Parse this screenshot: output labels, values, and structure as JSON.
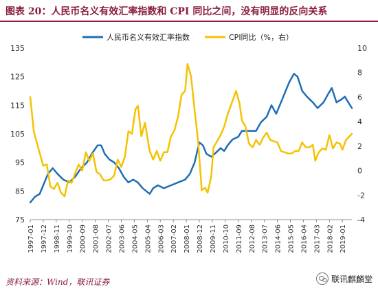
{
  "page": {
    "title": "图表 20：人民币名义有效汇率指数和 CPI 同比之间，没有明显的反向关系"
  },
  "footer": {
    "source": "资料来源：Wind，联讯证券",
    "brand": "联讯麒麟堂",
    "brand_icon": "wechat-icon"
  },
  "colors": {
    "accent": "#8a1f3c",
    "series_neer": "#1f6db5",
    "series_cpi": "#f5c200"
  },
  "chart_data": {
    "type": "line",
    "x_ticks": [
      "1997-01",
      "1997-12",
      "1998-11",
      "1999-10",
      "2000-09",
      "2001-08",
      "2002-07",
      "2003-06",
      "2004-05",
      "2005-04",
      "2006-03",
      "2007-02",
      "2008-01",
      "2008-12",
      "2009-11",
      "2010-10",
      "2011-09",
      "2012-08",
      "2013-07",
      "2014-06",
      "2015-05",
      "2016-04",
      "2017-03",
      "2018-02",
      "2019-01"
    ],
    "y_left": {
      "min": 75,
      "max": 135,
      "ticks": [
        75,
        85,
        95,
        105,
        115,
        125,
        135
      ]
    },
    "y_right": {
      "min": -4,
      "max": 10,
      "ticks": [
        -4,
        -2,
        0,
        2,
        4,
        6,
        8,
        10
      ]
    },
    "legend": {
      "position": "top"
    },
    "grid": false,
    "series": [
      {
        "name": "人民币名义有效汇率指数",
        "axis": "left",
        "points": [
          [
            "1997-01",
            81
          ],
          [
            "1997-05",
            83
          ],
          [
            "1997-09",
            84
          ],
          [
            "1998-01",
            88
          ],
          [
            "1998-04",
            91
          ],
          [
            "1998-08",
            93
          ],
          [
            "1998-12",
            91
          ],
          [
            "1999-05",
            89
          ],
          [
            "1999-10",
            88
          ],
          [
            "2000-03",
            90
          ],
          [
            "2000-08",
            93
          ],
          [
            "2001-01",
            95
          ],
          [
            "2001-05",
            98
          ],
          [
            "2001-10",
            101
          ],
          [
            "2002-01",
            101
          ],
          [
            "2002-04",
            98
          ],
          [
            "2002-08",
            96
          ],
          [
            "2002-12",
            95
          ],
          [
            "2003-04",
            93
          ],
          [
            "2003-08",
            90
          ],
          [
            "2003-12",
            88
          ],
          [
            "2004-04",
            89
          ],
          [
            "2004-08",
            88
          ],
          [
            "2004-12",
            86
          ],
          [
            "2005-03",
            85
          ],
          [
            "2005-06",
            84
          ],
          [
            "2005-09",
            86
          ],
          [
            "2006-01",
            87
          ],
          [
            "2006-06",
            86
          ],
          [
            "2006-12",
            87
          ],
          [
            "2007-06",
            88
          ],
          [
            "2007-12",
            89
          ],
          [
            "2008-04",
            91
          ],
          [
            "2008-08",
            95
          ],
          [
            "2008-12",
            102
          ],
          [
            "2009-03",
            101
          ],
          [
            "2009-06",
            98
          ],
          [
            "2009-10",
            97
          ],
          [
            "2010-01",
            98
          ],
          [
            "2010-06",
            100
          ],
          [
            "2010-09",
            99
          ],
          [
            "2010-12",
            101
          ],
          [
            "2011-04",
            103
          ],
          [
            "2011-09",
            104
          ],
          [
            "2011-12",
            106
          ],
          [
            "2012-04",
            106
          ],
          [
            "2012-08",
            106
          ],
          [
            "2012-12",
            106
          ],
          [
            "2013-04",
            109
          ],
          [
            "2013-09",
            111
          ],
          [
            "2014-01",
            115
          ],
          [
            "2014-05",
            112
          ],
          [
            "2014-09",
            116
          ],
          [
            "2015-01",
            120
          ],
          [
            "2015-04",
            123
          ],
          [
            "2015-08",
            126
          ],
          [
            "2015-11",
            125
          ],
          [
            "2016-03",
            120
          ],
          [
            "2016-07",
            118
          ],
          [
            "2016-12",
            116
          ],
          [
            "2017-04",
            114
          ],
          [
            "2017-09",
            116
          ],
          [
            "2018-01",
            119
          ],
          [
            "2018-04",
            121
          ],
          [
            "2018-08",
            116
          ],
          [
            "2018-12",
            117
          ],
          [
            "2019-03",
            118
          ],
          [
            "2019-06",
            116
          ],
          [
            "2019-09",
            114
          ]
        ]
      },
      {
        "name": "CPI同比（%，右）",
        "axis": "right",
        "points": [
          [
            "1997-01",
            6.0
          ],
          [
            "1997-04",
            3.2
          ],
          [
            "1997-08",
            1.8
          ],
          [
            "1997-12",
            0.4
          ],
          [
            "1998-03",
            0.5
          ],
          [
            "1998-06",
            -1.3
          ],
          [
            "1998-09",
            -1.5
          ],
          [
            "1998-12",
            -1.0
          ],
          [
            "1999-03",
            -1.8
          ],
          [
            "1999-06",
            -2.1
          ],
          [
            "1999-09",
            -0.8
          ],
          [
            "1999-12",
            -1.0
          ],
          [
            "2000-03",
            -0.2
          ],
          [
            "2000-06",
            0.5
          ],
          [
            "2000-09",
            0.0
          ],
          [
            "2000-12",
            1.5
          ],
          [
            "2001-03",
            0.8
          ],
          [
            "2001-06",
            1.4
          ],
          [
            "2001-09",
            -0.1
          ],
          [
            "2001-12",
            -0.3
          ],
          [
            "2002-03",
            -0.8
          ],
          [
            "2002-06",
            -0.8
          ],
          [
            "2002-09",
            -0.7
          ],
          [
            "2002-12",
            -0.4
          ],
          [
            "2003-03",
            0.9
          ],
          [
            "2003-06",
            0.3
          ],
          [
            "2003-09",
            1.1
          ],
          [
            "2003-12",
            3.2
          ],
          [
            "2004-03",
            3.0
          ],
          [
            "2004-06",
            5.0
          ],
          [
            "2004-08",
            5.3
          ],
          [
            "2004-11",
            2.8
          ],
          [
            "2005-02",
            3.9
          ],
          [
            "2005-06",
            1.6
          ],
          [
            "2005-09",
            0.9
          ],
          [
            "2005-12",
            1.6
          ],
          [
            "2006-03",
            0.8
          ],
          [
            "2006-06",
            1.5
          ],
          [
            "2006-09",
            1.5
          ],
          [
            "2006-12",
            2.8
          ],
          [
            "2007-03",
            3.3
          ],
          [
            "2007-06",
            4.4
          ],
          [
            "2007-09",
            6.2
          ],
          [
            "2007-12",
            6.5
          ],
          [
            "2008-02",
            8.7
          ],
          [
            "2008-05",
            7.7
          ],
          [
            "2008-08",
            4.9
          ],
          [
            "2008-11",
            2.4
          ],
          [
            "2009-02",
            -1.6
          ],
          [
            "2009-05",
            -1.4
          ],
          [
            "2009-07",
            -1.8
          ],
          [
            "2009-10",
            -0.5
          ],
          [
            "2009-12",
            1.9
          ],
          [
            "2010-03",
            2.4
          ],
          [
            "2010-06",
            2.9
          ],
          [
            "2010-09",
            3.6
          ],
          [
            "2010-12",
            4.6
          ],
          [
            "2011-03",
            5.4
          ],
          [
            "2011-07",
            6.5
          ],
          [
            "2011-10",
            5.5
          ],
          [
            "2011-12",
            4.1
          ],
          [
            "2012-03",
            3.6
          ],
          [
            "2012-06",
            2.2
          ],
          [
            "2012-09",
            1.9
          ],
          [
            "2012-12",
            2.5
          ],
          [
            "2013-03",
            2.1
          ],
          [
            "2013-06",
            2.7
          ],
          [
            "2013-09",
            3.1
          ],
          [
            "2013-12",
            2.5
          ],
          [
            "2014-03",
            2.4
          ],
          [
            "2014-06",
            2.3
          ],
          [
            "2014-09",
            1.6
          ],
          [
            "2014-12",
            1.5
          ],
          [
            "2015-03",
            1.4
          ],
          [
            "2015-06",
            1.4
          ],
          [
            "2015-09",
            1.6
          ],
          [
            "2015-12",
            1.6
          ],
          [
            "2016-03",
            2.3
          ],
          [
            "2016-06",
            1.9
          ],
          [
            "2016-09",
            1.9
          ],
          [
            "2016-12",
            2.1
          ],
          [
            "2017-02",
            0.8
          ],
          [
            "2017-05",
            1.5
          ],
          [
            "2017-08",
            1.8
          ],
          [
            "2017-11",
            1.7
          ],
          [
            "2018-02",
            2.9
          ],
          [
            "2018-05",
            1.8
          ],
          [
            "2018-08",
            2.3
          ],
          [
            "2018-11",
            2.2
          ],
          [
            "2019-01",
            1.7
          ],
          [
            "2019-04",
            2.5
          ],
          [
            "2019-07",
            2.8
          ],
          [
            "2019-09",
            3.0
          ]
        ]
      }
    ]
  }
}
